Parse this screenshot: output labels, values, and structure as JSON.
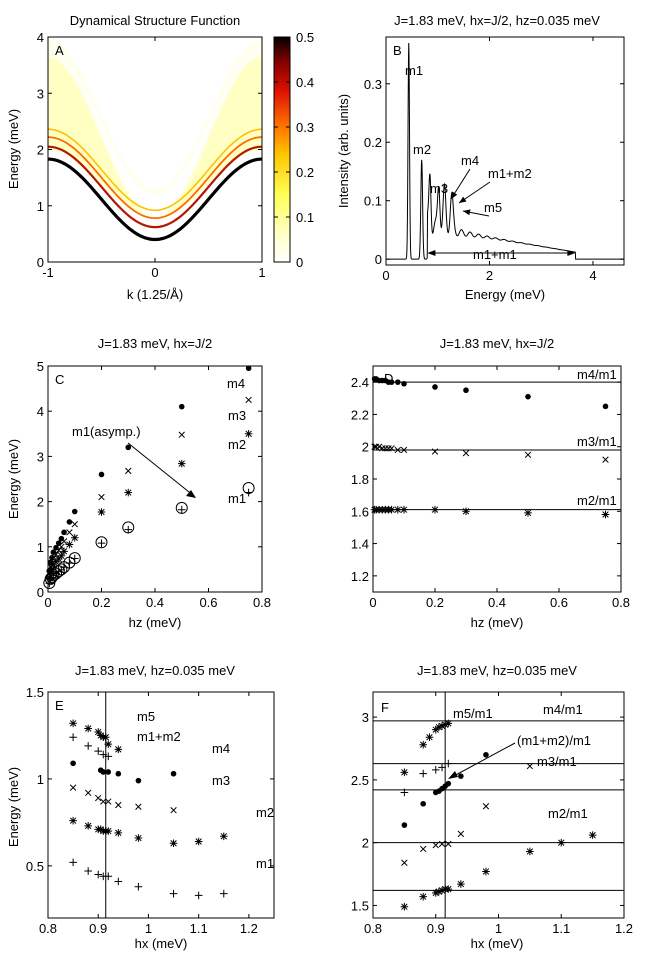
{
  "chart_data": [
    {
      "panel": "A",
      "type": "heatmap",
      "title": "Dynamical Structure Function",
      "xlabel": "k (1.25/Å)",
      "ylabel": "Energy (meV)",
      "xlim": [
        -1,
        1
      ],
      "ylim": [
        0,
        4
      ],
      "xticks": [
        "-1",
        "0",
        "1"
      ],
      "yticks": [
        "0",
        "1",
        "2",
        "3",
        "4"
      ],
      "colorbar": {
        "range": [
          0,
          0.5
        ],
        "ticks": [
          "0",
          "0.1",
          "0.2",
          "0.3",
          "0.4",
          "0.5"
        ],
        "colormap": "hot"
      },
      "bands": [
        {
          "label": "m1",
          "e_min": 0.4,
          "e_max": 1.83
        },
        {
          "label": "m2",
          "e_min": 0.62,
          "e_max": 2.05
        },
        {
          "label": "m3",
          "e_min": 0.78,
          "e_max": 2.22
        },
        {
          "label": "m4",
          "e_min": 0.92,
          "e_max": 2.36
        }
      ],
      "continuum": {
        "e_min": 0.8,
        "e_max": 3.66
      }
    },
    {
      "panel": "B",
      "type": "line",
      "title": "J=1.83 meV, hx=J/2, hz=0.035 meV",
      "xlabel": "Energy (meV)",
      "ylabel": "Intensity (arb. units)",
      "xlim": [
        0,
        4.6
      ],
      "ylim": [
        -0.01,
        0.38
      ],
      "xticks": [
        "0",
        "2",
        "4"
      ],
      "yticks": [
        "0",
        "0.1",
        "0.2",
        "0.3"
      ],
      "peaks": [
        {
          "label": "m1",
          "energy": 0.44,
          "intensity": 0.37
        },
        {
          "label": "m2",
          "energy": 0.69,
          "intensity": 0.17
        },
        {
          "label": "m3",
          "energy": 0.85,
          "intensity": 0.097
        },
        {
          "label": "m4",
          "energy": 1.02,
          "intensity": 0.078
        },
        {
          "label": "m1+m2",
          "energy": 1.13,
          "intensity": 0.068
        },
        {
          "label": "m5",
          "energy": 1.27,
          "intensity": 0.061
        }
      ],
      "continuum": {
        "label": "m1+m1",
        "e_start": 0.8,
        "e_end": 3.66,
        "level_start": 0.055,
        "level_end": 0.012
      },
      "annotations": [
        "m1",
        "m2",
        "m3",
        "m4",
        "m1+m2",
        "m5",
        "m1+m1"
      ]
    },
    {
      "panel": "C",
      "type": "scatter",
      "title": "J=1.83 meV, hx=J/2",
      "xlabel": "hz (meV)",
      "ylabel": "Energy (meV)",
      "xlim": [
        0,
        0.8
      ],
      "ylim": [
        0,
        5
      ],
      "xticks": [
        "0",
        "0.2",
        "0.4",
        "0.6",
        "0.8"
      ],
      "yticks": [
        "0",
        "1",
        "2",
        "3",
        "4",
        "5"
      ],
      "x": [
        0.005,
        0.01,
        0.015,
        0.02,
        0.03,
        0.04,
        0.05,
        0.06,
        0.08,
        0.1,
        0.2,
        0.3,
        0.5,
        0.75
      ],
      "series": [
        {
          "name": "m1",
          "marker": "plus",
          "values": [
            0.19,
            0.28,
            0.32,
            0.37,
            0.41,
            0.45,
            0.49,
            0.55,
            0.64,
            0.74,
            1.08,
            1.38,
            1.82,
            2.2
          ]
        },
        {
          "name": "m1(asymp.)",
          "marker": "circle",
          "values": [
            0.2,
            0.29,
            0.33,
            0.37,
            0.41,
            0.46,
            0.5,
            0.55,
            0.65,
            0.75,
            1.1,
            1.43,
            1.86,
            2.3
          ]
        },
        {
          "name": "m2",
          "marker": "star",
          "values": [
            0.32,
            0.44,
            0.5,
            0.6,
            0.67,
            0.73,
            0.8,
            0.9,
            1.05,
            1.2,
            1.77,
            2.2,
            2.84,
            3.5
          ]
        },
        {
          "name": "m3",
          "marker": "x",
          "values": [
            0.4,
            0.56,
            0.64,
            0.74,
            0.83,
            0.92,
            1.0,
            1.12,
            1.32,
            1.5,
            2.1,
            2.68,
            3.48,
            4.25
          ]
        },
        {
          "name": "m4",
          "marker": "dot",
          "values": [
            0.47,
            0.66,
            0.76,
            0.88,
            0.98,
            1.08,
            1.18,
            1.32,
            1.55,
            1.78,
            2.6,
            3.2,
            4.1,
            4.95
          ]
        }
      ],
      "labels": [
        "m4",
        "m3",
        "m2",
        "m1",
        "m1(asymp.)"
      ]
    },
    {
      "panel": "D",
      "type": "scatter",
      "title": "J=1.83 meV, hx=J/2",
      "xlabel": "hz (meV)",
      "ylabel": "",
      "xlim": [
        0,
        0.8
      ],
      "ylim": [
        1.1,
        2.5
      ],
      "xticks": [
        "0",
        "0.2",
        "0.4",
        "0.6",
        "0.8"
      ],
      "yticks": [
        "1.2",
        "1.4",
        "1.6",
        "1.8",
        "2",
        "2.2",
        "2.4"
      ],
      "x": [
        0.005,
        0.01,
        0.02,
        0.03,
        0.04,
        0.05,
        0.06,
        0.08,
        0.1,
        0.2,
        0.3,
        0.5,
        0.75
      ],
      "series": [
        {
          "name": "m4/m1",
          "marker": "dot",
          "values": [
            2.42,
            2.42,
            2.41,
            2.41,
            2.41,
            2.4,
            2.4,
            2.4,
            2.39,
            2.37,
            2.35,
            2.31,
            2.25
          ]
        },
        {
          "name": "m3/m1",
          "marker": "x",
          "values": [
            2.0,
            2.0,
            2.0,
            1.99,
            1.99,
            1.99,
            1.99,
            1.98,
            1.98,
            1.97,
            1.96,
            1.95,
            1.92
          ]
        },
        {
          "name": "m2/m1",
          "marker": "star",
          "values": [
            1.61,
            1.61,
            1.61,
            1.61,
            1.61,
            1.61,
            1.61,
            1.61,
            1.61,
            1.61,
            1.6,
            1.59,
            1.58
          ]
        }
      ],
      "hlines": [
        2.4,
        1.98,
        1.61
      ],
      "labels": [
        "m4/m1",
        "m3/m1",
        "m2/m1"
      ]
    },
    {
      "panel": "E",
      "type": "scatter",
      "title": "J=1.83 meV, hz=0.035 meV",
      "xlabel": "hx (meV)",
      "ylabel": "Energy (meV)",
      "xlim": [
        0.8,
        1.25
      ],
      "ylim": [
        0.2,
        1.5
      ],
      "xticks": [
        "0.8",
        "0.9",
        "1",
        "1.1",
        "1.2"
      ],
      "yticks": [
        "0.5",
        "1",
        "1.5"
      ],
      "vline": 0.915,
      "series": [
        {
          "name": "m1",
          "marker": "plus",
          "x": [
            0.85,
            0.88,
            0.9,
            0.91,
            0.92,
            0.94,
            0.98,
            1.05,
            1.1,
            1.15
          ],
          "values": [
            0.52,
            0.47,
            0.45,
            0.44,
            0.44,
            0.41,
            0.38,
            0.34,
            0.33,
            0.34
          ]
        },
        {
          "name": "m2",
          "marker": "star",
          "x": [
            0.85,
            0.88,
            0.9,
            0.905,
            0.91,
            0.915,
            0.92,
            0.94,
            0.98,
            1.05,
            1.1,
            1.15
          ],
          "values": [
            0.76,
            0.73,
            0.71,
            0.71,
            0.7,
            0.7,
            0.7,
            0.69,
            0.66,
            0.63,
            0.64,
            0.67
          ]
        },
        {
          "name": "m3",
          "marker": "x",
          "x": [
            0.85,
            0.88,
            0.9,
            0.91,
            0.92,
            0.94,
            0.98,
            1.05
          ],
          "values": [
            0.95,
            0.92,
            0.89,
            0.87,
            0.87,
            0.85,
            0.84,
            0.82
          ]
        },
        {
          "name": "m4",
          "marker": "dot",
          "x": [
            0.85,
            0.905,
            0.91,
            0.92,
            0.94,
            0.98,
            1.05
          ],
          "values": [
            1.09,
            1.05,
            1.04,
            1.04,
            1.03,
            0.99,
            1.03
          ]
        },
        {
          "name": "m1+m2",
          "marker": "plus",
          "x": [
            0.85,
            0.88,
            0.9,
            0.91,
            0.92
          ],
          "values": [
            1.24,
            1.19,
            1.16,
            1.14,
            1.13
          ]
        },
        {
          "name": "m5",
          "marker": "star",
          "x": [
            0.85,
            0.88,
            0.9,
            0.905,
            0.91,
            0.915,
            0.92,
            0.94
          ],
          "values": [
            1.32,
            1.29,
            1.27,
            1.25,
            1.24,
            1.24,
            1.2,
            1.17
          ]
        }
      ],
      "labels": [
        "m5",
        "m1+m2",
        "m4",
        "m3",
        "m2",
        "m1"
      ]
    },
    {
      "panel": "F",
      "type": "scatter",
      "title": "J=1.83 meV, hz=0.035 meV",
      "xlabel": "hx (meV)",
      "ylabel": "",
      "xlim": [
        0.8,
        1.2
      ],
      "ylim": [
        1.4,
        3.2
      ],
      "xticks": [
        "0.8",
        "0.9",
        "1",
        "1.1",
        "1.2"
      ],
      "yticks": [
        "1.5",
        "2",
        "2.5",
        "3"
      ],
      "vline": 0.915,
      "hlines": [
        2.97,
        2.63,
        2.42,
        2.0,
        1.62
      ],
      "series": [
        {
          "name": "m2/m1",
          "marker": "star",
          "x": [
            0.85,
            0.88,
            0.9,
            0.905,
            0.91,
            0.915,
            0.92,
            0.94,
            0.98,
            1.05,
            1.1,
            1.15
          ],
          "values": [
            1.49,
            1.57,
            1.6,
            1.61,
            1.62,
            1.63,
            1.63,
            1.67,
            1.77,
            1.93,
            2.0,
            2.06
          ]
        },
        {
          "name": "m3/m1",
          "marker": "x",
          "x": [
            0.85,
            0.88,
            0.9,
            0.91,
            0.92,
            0.94,
            0.98,
            1.05
          ],
          "values": [
            1.84,
            1.95,
            1.98,
            1.99,
            1.99,
            2.07,
            2.29,
            2.61
          ]
        },
        {
          "name": "m4/m1",
          "marker": "dot",
          "x": [
            0.85,
            0.88,
            0.9,
            0.905,
            0.91,
            0.915,
            0.92,
            0.94,
            0.98
          ],
          "values": [
            2.14,
            2.31,
            2.4,
            2.41,
            2.43,
            2.45,
            2.47,
            2.53,
            2.7
          ]
        },
        {
          "name": "m1+m2",
          "marker": "plus",
          "x": [
            0.85,
            0.88,
            0.9,
            0.91,
            0.92
          ],
          "values": [
            2.4,
            2.55,
            2.58,
            2.6,
            2.63
          ]
        },
        {
          "name": "m5/m1",
          "marker": "star",
          "x": [
            0.85,
            0.88,
            0.89,
            0.9,
            0.905,
            0.91,
            0.915,
            0.92
          ],
          "values": [
            2.56,
            2.78,
            2.84,
            2.9,
            2.92,
            2.93,
            2.94,
            2.95
          ]
        }
      ],
      "labels": [
        "m5/m1",
        "m4/m1",
        "(m1+m2)/m1",
        "m3/m1",
        "m2/m1"
      ]
    }
  ]
}
